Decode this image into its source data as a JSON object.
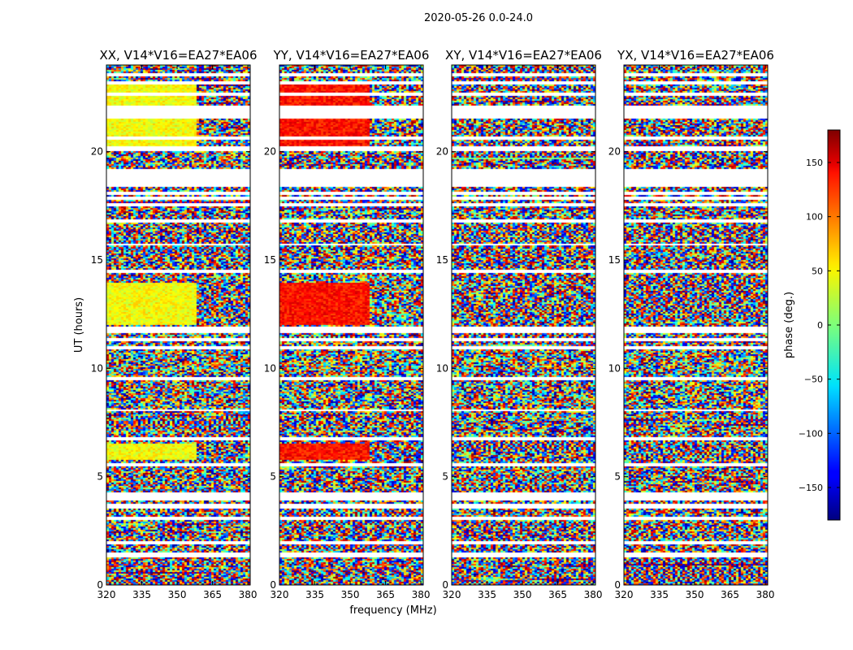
{
  "suptitle": "2020-05-26 0.0-24.0",
  "chart_data": {
    "type": "heatmap",
    "xlabel": "frequency (MHz)",
    "ylabel": "UT (hours)",
    "xlim": [
      320,
      381
    ],
    "ylim": [
      0,
      24
    ],
    "xticks": [
      320,
      335,
      350,
      365,
      380
    ],
    "yticks": [
      0,
      5,
      10,
      15,
      20
    ],
    "panels": [
      {
        "title": "XX, V14*V16=EA27*EA06",
        "pol": "XX"
      },
      {
        "title": "YY, V14*V16=EA27*EA06",
        "pol": "YY"
      },
      {
        "title": "XY, V14*V16=EA27*EA06",
        "pol": "XY"
      },
      {
        "title": "YX, V14*V16=EA27*EA06",
        "pol": "YX"
      }
    ],
    "flagged_ut_ranges": [
      [
        1.35,
        1.5
      ],
      [
        1.95,
        2.05
      ],
      [
        3.05,
        3.15
      ],
      [
        3.55,
        3.75
      ],
      [
        3.95,
        4.3
      ],
      [
        5.5,
        5.65
      ],
      [
        6.75,
        6.85
      ],
      [
        8.05,
        8.15
      ],
      [
        9.5,
        9.65
      ],
      [
        10.9,
        11.05
      ],
      [
        11.3,
        11.45
      ],
      [
        11.7,
        11.95
      ],
      [
        14.45,
        14.55
      ],
      [
        15.7,
        15.8
      ],
      [
        16.75,
        16.9
      ],
      [
        17.5,
        17.65
      ],
      [
        17.8,
        17.95
      ],
      [
        18.05,
        18.2
      ],
      [
        18.45,
        18.7
      ],
      [
        18.75,
        19.25
      ],
      [
        20.1,
        20.3
      ],
      [
        20.6,
        20.75
      ],
      [
        21.6,
        22.15
      ],
      [
        22.6,
        22.75
      ],
      [
        23.15,
        23.3
      ],
      [
        23.55,
        23.65
      ]
    ],
    "colorbar": {
      "label": "phase (deg.)",
      "range": [
        -180,
        180
      ],
      "ticks": [
        -150,
        -100,
        -50,
        0,
        50,
        100,
        150
      ],
      "tick_labels": [
        "−150",
        "−100",
        "−50",
        "0",
        "50",
        "100",
        "150"
      ],
      "colormap": "jet"
    }
  }
}
